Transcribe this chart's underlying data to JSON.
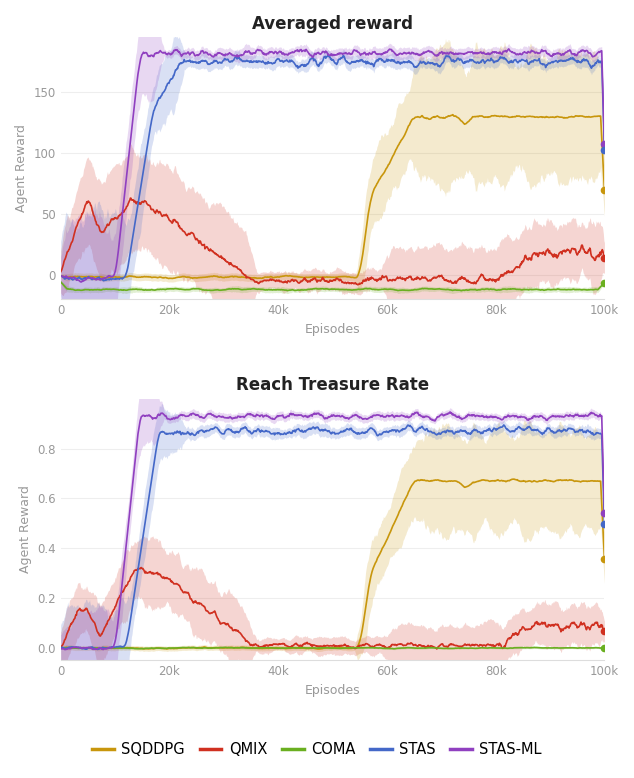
{
  "title1": "Averaged reward",
  "title2": "Reach Treasure Rate",
  "xlabel": "Episodes",
  "ylabel": "Agent Reward",
  "colors": {
    "SQDDPG": "#C8960C",
    "QMIX": "#D03020",
    "COMA": "#6AAF20",
    "STAS": "#4468C8",
    "STAS_ML": "#9040C0"
  },
  "x_ticks": [
    0,
    20000,
    40000,
    60000,
    80000,
    100000
  ],
  "x_tick_labels": [
    "0",
    "20k",
    "40k",
    "60k",
    "80k",
    "100k"
  ],
  "plot1_ylim": [
    -20,
    195
  ],
  "plot1_yticks": [
    0,
    50,
    100,
    150
  ],
  "plot2_ylim": [
    -0.05,
    1.0
  ],
  "plot2_yticks": [
    0.0,
    0.2,
    0.4,
    0.6,
    0.8
  ],
  "n_points": 1000,
  "background_color": "#ffffff",
  "shade_alpha": 0.2
}
